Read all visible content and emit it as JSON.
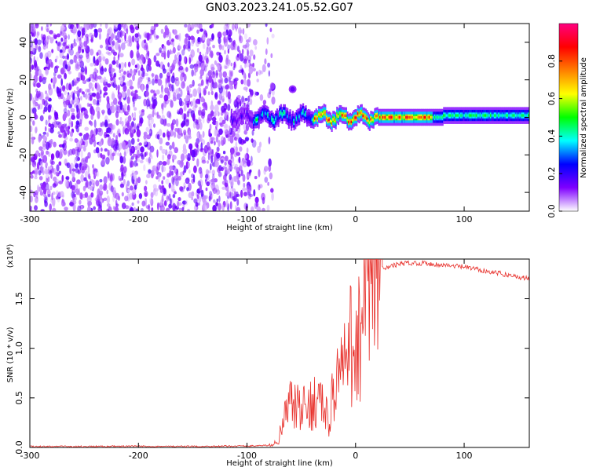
{
  "title": "GN03.2023.241.05.52.G07",
  "chart_data": [
    {
      "type": "heatmap",
      "xlabel": "Height of straight line (km)",
      "ylabel": "Frequency (Hz)",
      "xlim": [
        -300,
        160
      ],
      "ylim": [
        -50,
        50
      ],
      "x_ticks": [
        -300,
        -200,
        -100,
        0,
        100
      ],
      "x_tick_labels": [
        "-300",
        "-200",
        "-100",
        "0",
        "100"
      ],
      "y_ticks": [
        -40,
        -20,
        0,
        20,
        40
      ],
      "y_tick_labels": [
        "-40",
        "-20",
        "0",
        "20",
        "40"
      ],
      "colorbar": {
        "label": "Normalized spectral amplitude",
        "range": [
          0,
          1
        ],
        "ticks": [
          0,
          0.2,
          0.4,
          0.6,
          0.8
        ],
        "tick_labels": [
          "0.0",
          "0.2",
          "0.4",
          "0.6",
          "0.8"
        ],
        "colormap": [
          "#ffffff",
          "#7f00ff",
          "#0000ff",
          "#00ffff",
          "#00ff00",
          "#ffff00",
          "#ff7f00",
          "#ff0000",
          "#ff0080"
        ]
      },
      "features": {
        "noise_region_x": [
          -300,
          -95
        ],
        "signal_band_x": [
          -115,
          160
        ],
        "signal_center_hz": 0,
        "peak_amplitude_x": [
          -40,
          70
        ],
        "isolated_blob": {
          "x": -58,
          "hz": 15
        }
      }
    },
    {
      "type": "line",
      "xlabel": "Height of straight line (km)",
      "ylabel": "SNR (10 * v/v)",
      "scale_label": "(x10⁴)",
      "xlim": [
        -300,
        160
      ],
      "ylim": [
        0,
        1.9
      ],
      "x_ticks": [
        -300,
        -200,
        -100,
        0,
        100
      ],
      "x_tick_labels": [
        "-300",
        "-200",
        "-100",
        "0",
        "100"
      ],
      "y_ticks": [
        0,
        0.5,
        1.0,
        1.5
      ],
      "y_tick_labels": [
        "0.0",
        "0.5",
        "1.0",
        "1.5"
      ],
      "grid": false,
      "series": [
        {
          "color": "#e8322d",
          "x": [
            -300,
            -250,
            -200,
            -150,
            -100,
            -80,
            -72,
            -65,
            -60,
            -55,
            -50,
            -45,
            -40,
            -35,
            -30,
            -25,
            -20,
            -15,
            -10,
            -5,
            0,
            5,
            10,
            15,
            20,
            25,
            30,
            40,
            50,
            60,
            70,
            80,
            90,
            100,
            110,
            120,
            130,
            140,
            150,
            160
          ],
          "y": [
            0.01,
            0.01,
            0.012,
            0.01,
            0.015,
            0.02,
            0.05,
            0.3,
            0.45,
            0.4,
            0.35,
            0.4,
            0.45,
            0.5,
            0.42,
            0.25,
            0.6,
            0.75,
            0.8,
            1.0,
            1.1,
            1.2,
            1.35,
            1.5,
            1.7,
            1.8,
            1.82,
            1.85,
            1.86,
            1.86,
            1.85,
            1.84,
            1.83,
            1.82,
            1.8,
            1.78,
            1.76,
            1.74,
            1.72,
            1.7
          ]
        }
      ]
    }
  ]
}
